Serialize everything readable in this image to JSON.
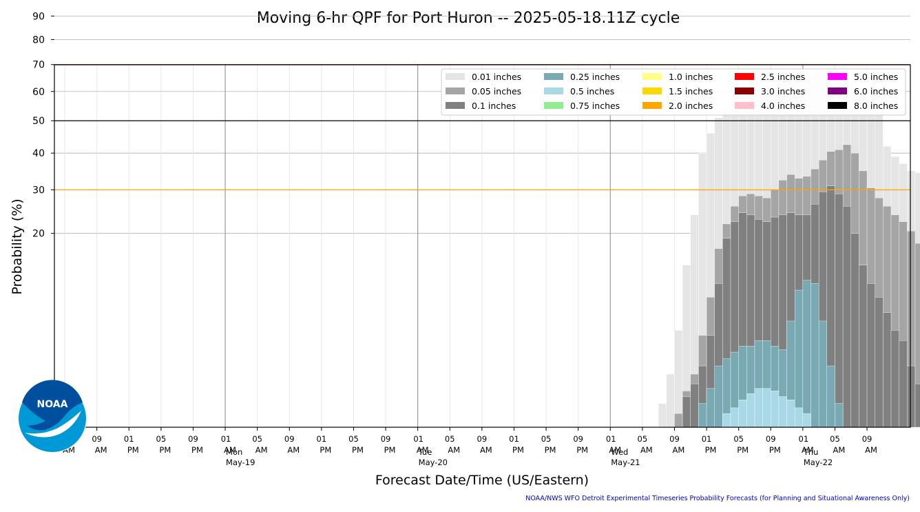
{
  "chart_data": {
    "type": "bar",
    "title": "Moving 6-hr QPF for Port Huron -- 2025-05-18.11Z cycle",
    "xlabel": "Forecast Date/Time (US/Eastern)",
    "ylabel": "Probability (%)",
    "footer": "NOAA/NWS WFO Detroit Experimental Timeseries Probability Forecasts (for Planning and Situational Awareness Only)",
    "logo_text": "NOAA",
    "y_scale": "sqrt",
    "ylim": [
      0,
      100
    ],
    "yticks": [
      20,
      30,
      40,
      50,
      60,
      70,
      80,
      90
    ],
    "grid": true,
    "legend_position": "top-right",
    "x_start": "2025-05-18 04:00",
    "x_end": "2025-05-22 10:00",
    "bar_start": "2025-05-18 07:00",
    "bar_interval_hours": 1,
    "threshold_lines": [
      {
        "value": 70,
        "color": "#e00000"
      },
      {
        "value": 50,
        "color": "#000000"
      },
      {
        "value": 30,
        "color": "#ffa500"
      }
    ],
    "xtick_labels": [
      {
        "time": "2025-05-18 05:00",
        "hour": "05",
        "ampm": "AM",
        "day": "",
        "date": ""
      },
      {
        "time": "2025-05-18 09:00",
        "hour": "09",
        "ampm": "AM",
        "day": "",
        "date": ""
      },
      {
        "time": "2025-05-18 13:00",
        "hour": "01",
        "ampm": "PM",
        "day": "",
        "date": ""
      },
      {
        "time": "2025-05-18 17:00",
        "hour": "05",
        "ampm": "PM",
        "day": "",
        "date": ""
      },
      {
        "time": "2025-05-18 21:00",
        "hour": "09",
        "ampm": "PM",
        "day": "",
        "date": ""
      },
      {
        "time": "2025-05-19 01:00",
        "hour": "01",
        "ampm": "AM",
        "day": "Mon",
        "date": "May-19"
      },
      {
        "time": "2025-05-19 05:00",
        "hour": "05",
        "ampm": "AM",
        "day": "",
        "date": ""
      },
      {
        "time": "2025-05-19 09:00",
        "hour": "09",
        "ampm": "AM",
        "day": "",
        "date": ""
      },
      {
        "time": "2025-05-19 13:00",
        "hour": "01",
        "ampm": "PM",
        "day": "",
        "date": ""
      },
      {
        "time": "2025-05-19 17:00",
        "hour": "05",
        "ampm": "PM",
        "day": "",
        "date": ""
      },
      {
        "time": "2025-05-19 21:00",
        "hour": "09",
        "ampm": "PM",
        "day": "",
        "date": ""
      },
      {
        "time": "2025-05-20 01:00",
        "hour": "01",
        "ampm": "AM",
        "day": "Tue",
        "date": "May-20"
      },
      {
        "time": "2025-05-20 05:00",
        "hour": "05",
        "ampm": "AM",
        "day": "",
        "date": ""
      },
      {
        "time": "2025-05-20 09:00",
        "hour": "09",
        "ampm": "AM",
        "day": "",
        "date": ""
      },
      {
        "time": "2025-05-20 13:00",
        "hour": "01",
        "ampm": "PM",
        "day": "",
        "date": ""
      },
      {
        "time": "2025-05-20 17:00",
        "hour": "05",
        "ampm": "PM",
        "day": "",
        "date": ""
      },
      {
        "time": "2025-05-20 21:00",
        "hour": "09",
        "ampm": "PM",
        "day": "",
        "date": ""
      },
      {
        "time": "2025-05-21 01:00",
        "hour": "01",
        "ampm": "AM",
        "day": "Wed",
        "date": "May-21"
      },
      {
        "time": "2025-05-21 05:00",
        "hour": "05",
        "ampm": "AM",
        "day": "",
        "date": ""
      },
      {
        "time": "2025-05-21 09:00",
        "hour": "09",
        "ampm": "AM",
        "day": "",
        "date": ""
      },
      {
        "time": "2025-05-21 13:00",
        "hour": "01",
        "ampm": "PM",
        "day": "",
        "date": ""
      },
      {
        "time": "2025-05-21 17:00",
        "hour": "05",
        "ampm": "PM",
        "day": "",
        "date": ""
      },
      {
        "time": "2025-05-21 21:00",
        "hour": "09",
        "ampm": "PM",
        "day": "",
        "date": ""
      },
      {
        "time": "2025-05-22 01:00",
        "hour": "01",
        "ampm": "AM",
        "day": "Thu",
        "date": "May-22"
      },
      {
        "time": "2025-05-22 05:00",
        "hour": "05",
        "ampm": "AM",
        "day": "",
        "date": ""
      },
      {
        "time": "2025-05-22 09:00",
        "hour": "09",
        "ampm": "AM",
        "day": "",
        "date": ""
      }
    ],
    "legend": [
      {
        "label": "0.01 inches",
        "color": "#e5e5e5"
      },
      {
        "label": "0.05 inches",
        "color": "#a5a5a5"
      },
      {
        "label": "0.1 inches",
        "color": "#808080"
      },
      {
        "label": "0.25 inches",
        "color": "#79a9b3"
      },
      {
        "label": "0.5 inches",
        "color": "#a9d9e6"
      },
      {
        "label": "0.75 inches",
        "color": "#90ee90"
      },
      {
        "label": "1.0 inches",
        "color": "#ffff88"
      },
      {
        "label": "1.5 inches",
        "color": "#ffd700"
      },
      {
        "label": "2.0 inches",
        "color": "#ffa500"
      },
      {
        "label": "2.5 inches",
        "color": "#ff0000"
      },
      {
        "label": "3.0 inches",
        "color": "#8b0000"
      },
      {
        "label": "4.0 inches",
        "color": "#ffc0cb"
      },
      {
        "label": "5.0 inches",
        "color": "#ff00ff"
      },
      {
        "label": "6.0 inches",
        "color": "#800080"
      },
      {
        "label": "8.0 inches",
        "color": "#000000"
      }
    ],
    "series": [
      {
        "name": "0.01 inches",
        "color": "#e5e5e5",
        "values": [
          0,
          0,
          0,
          0,
          0,
          0,
          0,
          0,
          0,
          0,
          0,
          0,
          0,
          0,
          0,
          0,
          0,
          0,
          0,
          0,
          0,
          0,
          0,
          0,
          0,
          0,
          0,
          0,
          0,
          0,
          0,
          0,
          0,
          0,
          0,
          0,
          0,
          0,
          0,
          0,
          0,
          0,
          0,
          0,
          0,
          0,
          0,
          0,
          0,
          0,
          0,
          0,
          0,
          0,
          0,
          0,
          0,
          0,
          0,
          0,
          0,
          0,
          0,
          0,
          0,
          0,
          0,
          0,
          0,
          0,
          0,
          0,
          0.3,
          1.5,
          5,
          14,
          24,
          40,
          46,
          51,
          54,
          56,
          57,
          58,
          60,
          62.5,
          63,
          63,
          63.5,
          64,
          66,
          67,
          68,
          68,
          67,
          63,
          61,
          61,
          60,
          53,
          42,
          39,
          37,
          35,
          34.5,
          36,
          38,
          37,
          34.5,
          33,
          33,
          33,
          32,
          30,
          27.5
        ]
      },
      {
        "name": "0.05 inches",
        "color": "#a5a5a5",
        "values": [
          0,
          0,
          0,
          0,
          0,
          0,
          0,
          0,
          0,
          0,
          0,
          0,
          0,
          0,
          0,
          0,
          0,
          0,
          0,
          0,
          0,
          0,
          0,
          0,
          0,
          0,
          0,
          0,
          0,
          0,
          0,
          0,
          0,
          0,
          0,
          0,
          0,
          0,
          0,
          0,
          0,
          0,
          0,
          0,
          0,
          0,
          0,
          0,
          0,
          0,
          0,
          0,
          0,
          0,
          0,
          0,
          0,
          0,
          0,
          0,
          0,
          0,
          0,
          0,
          0,
          0,
          0,
          0,
          0,
          0,
          0,
          0,
          0,
          0,
          0.1,
          0.7,
          1.5,
          4.5,
          9,
          17,
          22,
          26,
          28.5,
          29,
          28.5,
          28,
          30,
          32.5,
          34,
          33,
          33.5,
          35.5,
          38,
          40.5,
          41,
          42.5,
          40,
          35,
          30.5,
          28,
          26,
          24,
          22.5,
          20.5,
          18,
          13,
          8,
          4,
          1.8,
          0.5,
          0.1,
          0,
          0,
          0,
          0,
          0,
          0,
          0,
          0
        ]
      },
      {
        "name": "0.1 inches",
        "color": "#808080",
        "values": [
          0,
          0,
          0,
          0,
          0,
          0,
          0,
          0,
          0,
          0,
          0,
          0,
          0,
          0,
          0,
          0,
          0,
          0,
          0,
          0,
          0,
          0,
          0,
          0,
          0,
          0,
          0,
          0,
          0,
          0,
          0,
          0,
          0,
          0,
          0,
          0,
          0,
          0,
          0,
          0,
          0,
          0,
          0,
          0,
          0,
          0,
          0,
          0,
          0,
          0,
          0,
          0,
          0,
          0,
          0,
          0,
          0,
          0,
          0,
          0,
          0,
          0,
          0,
          0,
          0,
          0,
          0,
          0,
          0,
          0,
          0,
          0,
          0,
          0,
          0,
          0.5,
          1,
          2,
          4.5,
          11,
          19,
          22.5,
          24.5,
          24,
          23,
          22.5,
          23.5,
          24,
          24.5,
          24,
          24,
          26.5,
          29.5,
          31,
          29,
          26,
          20,
          14,
          11,
          9,
          7,
          5,
          4,
          2,
          1,
          0.3,
          0.1,
          0,
          0,
          0,
          0,
          0.3,
          0.5,
          0.7,
          0.8,
          1,
          1.2
        ]
      },
      {
        "name": "0.25 inches",
        "color": "#79a9b3",
        "values": [
          0,
          0,
          0,
          0,
          0,
          0,
          0,
          0,
          0,
          0,
          0,
          0,
          0,
          0,
          0,
          0,
          0,
          0,
          0,
          0,
          0,
          0,
          0,
          0,
          0,
          0,
          0,
          0,
          0,
          0,
          0,
          0,
          0,
          0,
          0,
          0,
          0,
          0,
          0,
          0,
          0,
          0,
          0,
          0,
          0,
          0,
          0,
          0,
          0,
          0,
          0,
          0,
          0,
          0,
          0,
          0,
          0,
          0,
          0,
          0,
          0,
          0,
          0,
          0,
          0,
          0,
          0,
          0,
          0,
          0,
          0,
          0,
          0,
          0,
          0,
          0,
          0,
          0.3,
          0.8,
          2,
          2.5,
          3,
          3.5,
          3.5,
          4,
          4,
          3.5,
          3.2,
          6,
          10,
          11.5,
          11,
          6,
          2,
          0.3,
          0,
          0,
          0,
          0,
          0,
          0,
          0,
          0,
          0,
          0,
          0,
          0,
          0,
          0,
          0,
          0,
          0,
          0,
          0,
          0,
          0
        ]
      },
      {
        "name": "0.5 inches",
        "color": "#a9d9e6",
        "values": [
          0,
          0,
          0,
          0,
          0,
          0,
          0,
          0,
          0,
          0,
          0,
          0,
          0,
          0,
          0,
          0,
          0,
          0,
          0,
          0,
          0,
          0,
          0,
          0,
          0,
          0,
          0,
          0,
          0,
          0,
          0,
          0,
          0,
          0,
          0,
          0,
          0,
          0,
          0,
          0,
          0,
          0,
          0,
          0,
          0,
          0,
          0,
          0,
          0,
          0,
          0,
          0,
          0,
          0,
          0,
          0,
          0,
          0,
          0,
          0,
          0,
          0,
          0,
          0,
          0,
          0,
          0,
          0,
          0,
          0,
          0,
          0,
          0,
          0,
          0,
          0,
          0,
          0,
          0,
          0,
          0.1,
          0.2,
          0.4,
          0.6,
          0.8,
          0.8,
          0.7,
          0.5,
          0.4,
          0.2,
          0.1,
          0,
          0,
          0,
          0,
          0,
          0,
          0,
          0,
          0,
          0,
          0,
          0,
          0,
          0,
          0,
          0,
          0,
          0,
          0,
          0,
          0,
          0,
          0,
          0,
          0
        ]
      }
    ]
  }
}
